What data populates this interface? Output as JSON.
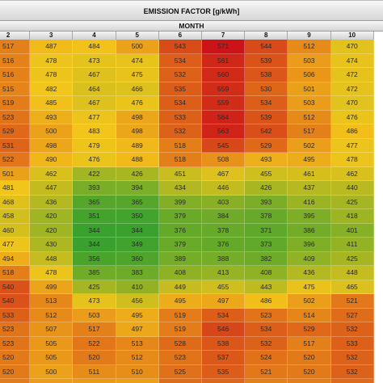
{
  "title": "EMISSION FACTOR [g/kWh]",
  "subtitle": "MONTH",
  "chart_data": {
    "type": "heatmap",
    "title": "EMISSION FACTOR [g/kWh]",
    "xlabel": "MONTH",
    "columns": [
      "2",
      "3",
      "4",
      "5",
      "6",
      "7",
      "8",
      "9",
      "10"
    ],
    "rows": [
      [
        517,
        487,
        484,
        500,
        543,
        571,
        544,
        512,
        470
      ],
      [
        516,
        478,
        473,
        474,
        534,
        561,
        539,
        503,
        474
      ],
      [
        516,
        478,
        467,
        475,
        532,
        560,
        538,
        506,
        472
      ],
      [
        515,
        482,
        464,
        466,
        535,
        559,
        530,
        501,
        472
      ],
      [
        519,
        485,
        467,
        476,
        534,
        559,
        534,
        503,
        470
      ],
      [
        523,
        493,
        477,
        498,
        533,
        564,
        539,
        512,
        476
      ],
      [
        529,
        500,
        483,
        498,
        532,
        563,
        542,
        517,
        486
      ],
      [
        531,
        498,
        479,
        489,
        518,
        545,
        529,
        502,
        477
      ],
      [
        522,
        490,
        476,
        488,
        518,
        508,
        493,
        495,
        478
      ],
      [
        501,
        462,
        422,
        426,
        451,
        467,
        455,
        461,
        462
      ],
      [
        481,
        447,
        393,
        394,
        434,
        446,
        426,
        437,
        440
      ],
      [
        468,
        436,
        365,
        365,
        399,
        403,
        393,
        416,
        425
      ],
      [
        458,
        420,
        351,
        350,
        379,
        384,
        378,
        395,
        418
      ],
      [
        460,
        420,
        344,
        344,
        376,
        378,
        371,
        386,
        401
      ],
      [
        477,
        430,
        344,
        349,
        379,
        376,
        373,
        396,
        411
      ],
      [
        494,
        448,
        356,
        360,
        389,
        388,
        382,
        409,
        425
      ],
      [
        518,
        478,
        385,
        383,
        408,
        413,
        408,
        436,
        448
      ],
      [
        540,
        499,
        425,
        410,
        449,
        455,
        443,
        475,
        465
      ],
      [
        540,
        513,
        473,
        456,
        495,
        497,
        486,
        502,
        521
      ],
      [
        533,
        512,
        503,
        495,
        519,
        534,
        523,
        514,
        527
      ],
      [
        523,
        507,
        517,
        497,
        519,
        546,
        534,
        529,
        532
      ],
      [
        523,
        505,
        522,
        513,
        528,
        538,
        532,
        517,
        533
      ],
      [
        520,
        505,
        520,
        512,
        523,
        537,
        524,
        520,
        532
      ],
      [
        520,
        500,
        511,
        510,
        525,
        535,
        521,
        520,
        532
      ],
      [
        519,
        503,
        504,
        502,
        527,
        530,
        517,
        518,
        528
      ]
    ],
    "color_scale": {
      "low": "#3aa12e",
      "mid": "#f3c51a",
      "high": "#cc1418"
    }
  }
}
